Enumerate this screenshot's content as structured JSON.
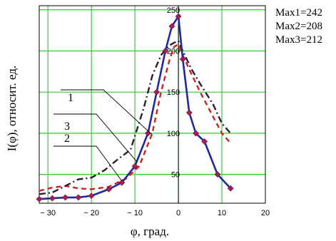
{
  "chart_data": {
    "type": "line",
    "title": "",
    "xlabel": "φ, град.",
    "ylabel": "I(φ), относит. ед.",
    "xlim": [
      -32,
      20
    ],
    "ylim": [
      15,
      255
    ],
    "grid": true,
    "x_ticks": [
      -30,
      -20,
      -10,
      0,
      10,
      20
    ],
    "x_tick_labels": [
      "− 30",
      "− 20",
      "− 10",
      "0",
      "10",
      "20"
    ],
    "y_ticks": [
      50,
      100,
      150,
      200,
      250
    ],
    "y_tick_labels": [
      "50",
      "100",
      "150",
      "200",
      "250"
    ],
    "grid_color": "#33cc33",
    "series": [
      {
        "label": "1",
        "color": "#1f2a9e",
        "style": "solid",
        "markers": true,
        "x": [
          -32,
          -29,
          -26,
          -23,
          -20,
          -16,
          -13,
          -10,
          -7,
          -5,
          -3,
          -1.5,
          0,
          1,
          2.5,
          4,
          6,
          9,
          12
        ],
        "y": [
          20,
          21,
          22,
          22,
          24,
          32,
          40,
          60,
          100,
          150,
          200,
          230,
          242,
          190,
          125,
          100,
          90,
          50,
          33
        ]
      },
      {
        "label": "2",
        "color": "#cc2222",
        "style": "dashed",
        "markers": false,
        "x": [
          -32,
          -29,
          -26,
          -23,
          -20,
          -16,
          -12,
          -9,
          -6,
          -4,
          -2,
          -1,
          0,
          1,
          3,
          5,
          8,
          10,
          12
        ],
        "y": [
          30,
          34,
          36,
          33,
          32,
          35,
          45,
          60,
          100,
          150,
          190,
          205,
          208,
          195,
          172,
          150,
          120,
          100,
          88
        ]
      },
      {
        "label": "3",
        "color": "#331a33",
        "style": "dash-dot",
        "markers": false,
        "x": [
          -32,
          -29,
          -26,
          -23,
          -20,
          -17,
          -14,
          -11,
          -8,
          -6,
          -4,
          -2,
          -1,
          0,
          1,
          3,
          5,
          8,
          10,
          12
        ],
        "y": [
          26,
          28,
          36,
          44,
          46,
          55,
          68,
          80,
          130,
          170,
          195,
          207,
          210,
          212,
          200,
          178,
          160,
          135,
          112,
          100
        ]
      }
    ],
    "annotations": {
      "max1": "Max1=242",
      "max2": "Max2=208",
      "max3": "Max3=212",
      "curve_label_1": "1",
      "curve_label_2": "2",
      "curve_label_3": "3"
    }
  }
}
